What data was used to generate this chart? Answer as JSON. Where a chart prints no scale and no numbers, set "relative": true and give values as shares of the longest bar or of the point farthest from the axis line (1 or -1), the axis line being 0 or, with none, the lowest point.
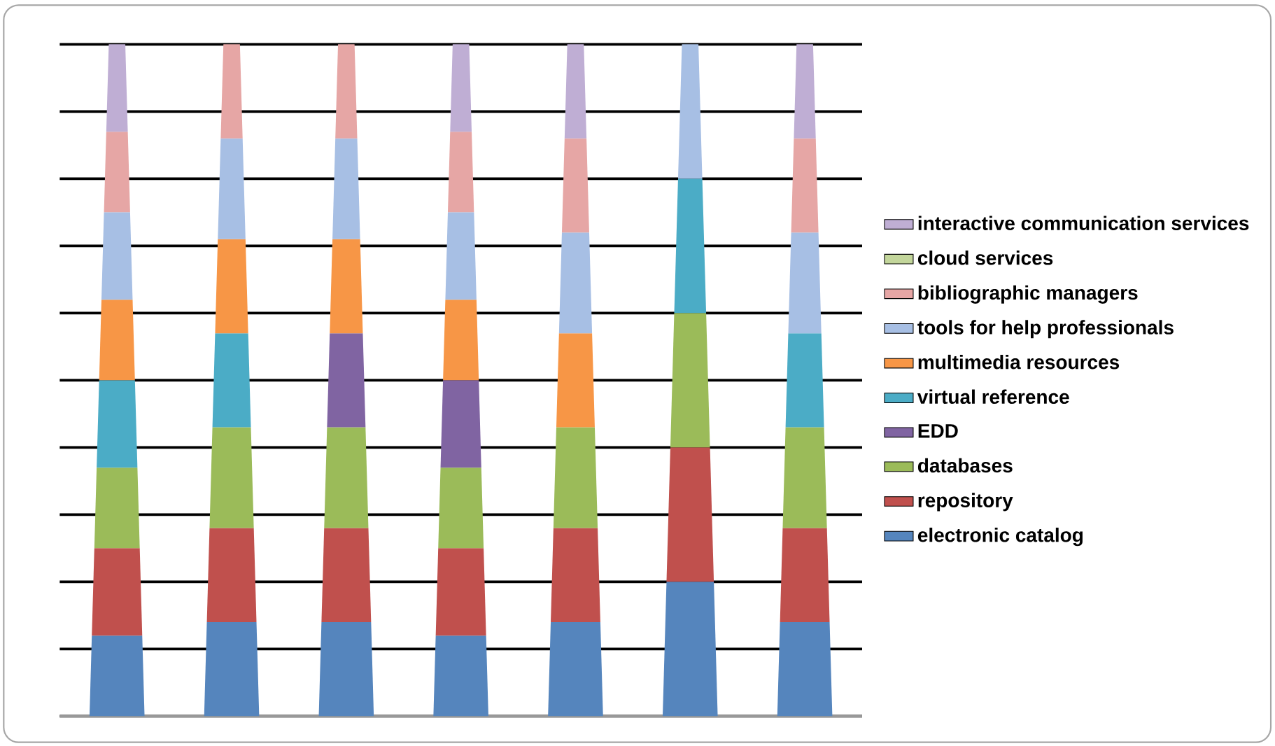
{
  "chart_data": {
    "type": "bar",
    "stacked": true,
    "relative": true,
    "grid": "y",
    "legend": "right",
    "categories": [
      null,
      null,
      null,
      null,
      null,
      null,
      null
    ],
    "series": [
      {
        "name": "electronic catalog",
        "color": "#5585bd",
        "values": [
          0.12,
          0.14,
          0.14,
          0.12,
          0.14,
          0.2,
          0.14
        ]
      },
      {
        "name": "repository",
        "color": "#c0504d",
        "values": [
          0.13,
          0.14,
          0.14,
          0.13,
          0.14,
          0.2,
          0.14
        ]
      },
      {
        "name": "databases",
        "color": "#9bbb59",
        "values": [
          0.12,
          0.15,
          0.15,
          0.12,
          0.15,
          0.2,
          0.15
        ]
      },
      {
        "name": "EDD",
        "color": "#8064a2",
        "values": [
          null,
          null,
          0.14,
          0.13,
          null,
          null,
          null
        ]
      },
      {
        "name": "virtual reference",
        "color": "#4bacc6",
        "values": [
          0.13,
          0.14,
          null,
          null,
          null,
          0.2,
          0.14
        ]
      },
      {
        "name": "multimedia resources",
        "color": "#f79646",
        "values": [
          0.12,
          0.14,
          0.14,
          0.12,
          0.14,
          null,
          null
        ]
      },
      {
        "name": "tools for help professionals",
        "color": "#a7bfe4",
        "values": [
          0.13,
          0.15,
          0.15,
          0.13,
          0.15,
          0.2,
          0.15
        ]
      },
      {
        "name": "bibliographic managers",
        "color": "#e6a6a5",
        "values": [
          0.12,
          0.14,
          0.14,
          0.12,
          0.14,
          null,
          0.14
        ]
      },
      {
        "name": "cloud services",
        "color": "#c3d69b",
        "values": [
          null,
          null,
          null,
          null,
          null,
          null,
          null
        ]
      },
      {
        "name": "interactive communication services",
        "color": "#bfaed4",
        "values": [
          0.13,
          null,
          null,
          0.13,
          0.14,
          null,
          0.14
        ]
      }
    ]
  }
}
